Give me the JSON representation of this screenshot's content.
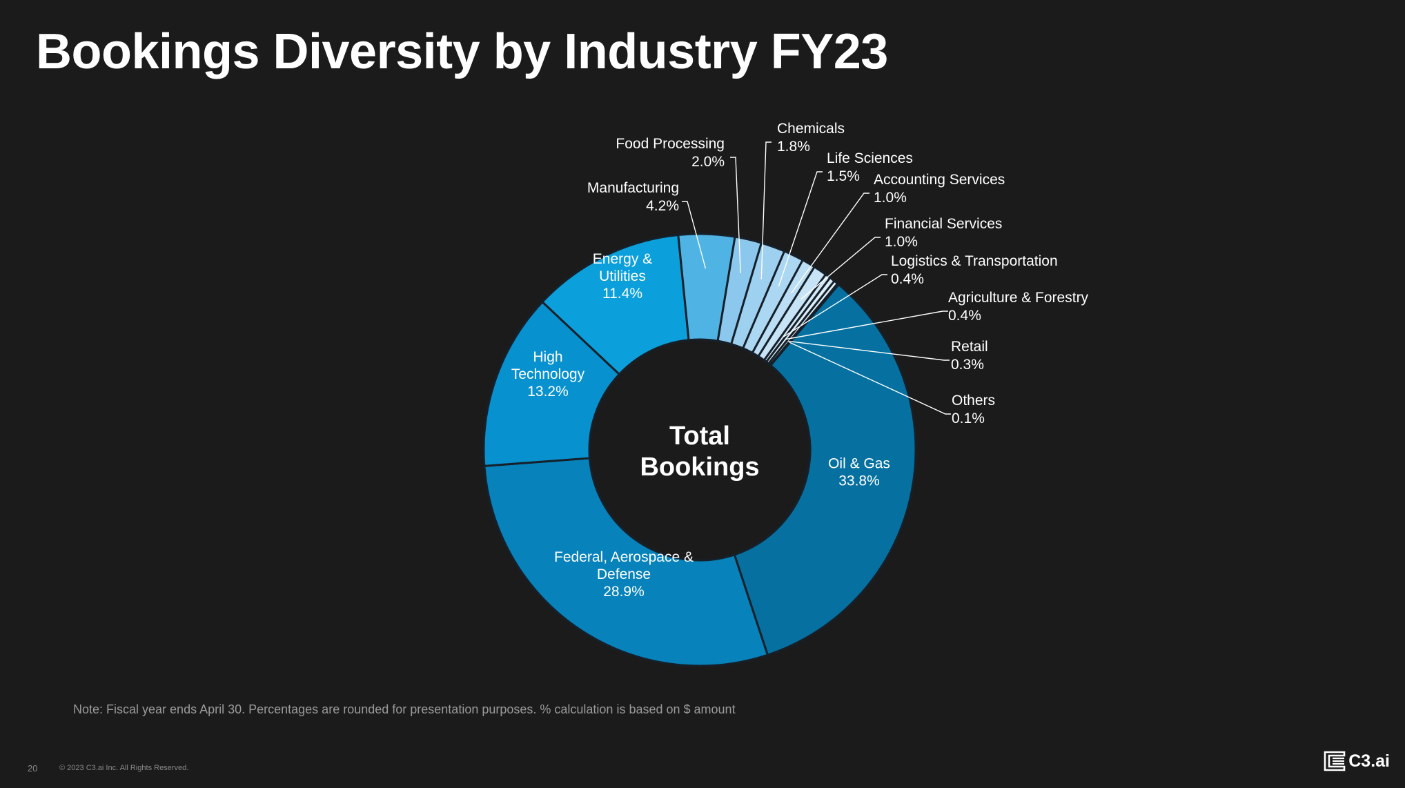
{
  "slide": {
    "title": "Bookings Diversity by Industry FY23",
    "note": "Note: Fiscal year ends April 30. Percentages are rounded for presentation purposes. % calculation is based on $ amount",
    "page_number": "20",
    "copyright": "© 2023 C3.ai Inc. All Rights Reserved.",
    "logo_text": "C3.ai",
    "logo_icon": "c3-logo-icon"
  },
  "chart_data": {
    "type": "pie",
    "style": "donut",
    "center_label": [
      "Total",
      "Bookings"
    ],
    "background": "#1b1b1b",
    "segments": [
      {
        "label": "Oil & Gas",
        "lines": [
          "Oil & Gas"
        ],
        "value": 33.8,
        "display": "33.8%",
        "color": "#0671a0",
        "label_position": "inside"
      },
      {
        "label": "Federal, Aerospace & Defense",
        "lines": [
          "Federal,  Aerospace &",
          "Defense"
        ],
        "value": 28.9,
        "display": "28.9%",
        "color": "#0782bb",
        "label_position": "inside"
      },
      {
        "label": "High Technology",
        "lines": [
          "High",
          "Technology"
        ],
        "value": 13.2,
        "display": "13.2%",
        "color": "#0891cf",
        "label_position": "inside"
      },
      {
        "label": "Energy & Utilities",
        "lines": [
          "Energy &",
          "Utilities"
        ],
        "value": 11.4,
        "display": "11.4%",
        "color": "#0ba0db",
        "label_position": "inside"
      },
      {
        "label": "Manufacturing",
        "lines": [
          "Manufacturing"
        ],
        "value": 4.2,
        "display": "4.2%",
        "color": "#4fb3e4",
        "label_position": "outside"
      },
      {
        "label": "Food Processing",
        "lines": [
          "Food Processing"
        ],
        "value": 2.0,
        "display": "2.0%",
        "color": "#8cc8ed",
        "label_position": "outside"
      },
      {
        "label": "Chemicals",
        "lines": [
          "Chemicals"
        ],
        "value": 1.8,
        "display": "1.8%",
        "color": "#9ed0f0",
        "label_position": "outside"
      },
      {
        "label": "Life Sciences",
        "lines": [
          "Life Sciences"
        ],
        "value": 1.5,
        "display": "1.5%",
        "color": "#acd7f2",
        "label_position": "outside"
      },
      {
        "label": "Accounting Services",
        "lines": [
          "Accounting Services"
        ],
        "value": 1.0,
        "display": "1.0%",
        "color": "#bbdef4",
        "label_position": "outside"
      },
      {
        "label": "Financial Services",
        "lines": [
          "Financial Services"
        ],
        "value": 1.0,
        "display": "1.0%",
        "color": "#c7e4f6",
        "label_position": "outside"
      },
      {
        "label": "Logistics & Transportation",
        "lines": [
          "Logistics & Transportation"
        ],
        "value": 0.4,
        "display": "0.4%",
        "color": "#d2e9f8",
        "label_position": "outside"
      },
      {
        "label": "Agriculture & Forestry",
        "lines": [
          "Agriculture & Forestry"
        ],
        "value": 0.4,
        "display": "0.4%",
        "color": "#dceef9",
        "label_position": "outside"
      },
      {
        "label": "Retail",
        "lines": [
          "Retail"
        ],
        "value": 0.3,
        "display": "0.3%",
        "color": "#e5f2fa",
        "label_position": "outside"
      },
      {
        "label": "Others",
        "lines": [
          "Others"
        ],
        "value": 0.1,
        "display": "0.1%",
        "color": "#eef6fb",
        "label_position": "outside"
      }
    ]
  }
}
